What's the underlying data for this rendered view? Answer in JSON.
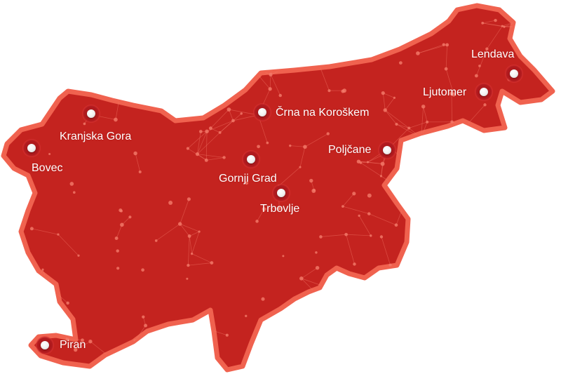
{
  "map": {
    "country": "Slovenia",
    "colors": {
      "fill": "#c4231f",
      "border": "#f0624f",
      "network": "#f47a6a"
    },
    "towns": [
      {
        "name": "Lendava",
        "icon": "location-marker-icon"
      },
      {
        "name": "Ljutomer",
        "icon": "location-marker-icon"
      },
      {
        "name": "Črna na Koroškem",
        "icon": "location-marker-icon"
      },
      {
        "name": "Poljčane",
        "icon": "location-marker-icon"
      },
      {
        "name": "Kranjska Gora",
        "icon": "location-marker-icon"
      },
      {
        "name": "Bovec",
        "icon": "location-marker-icon"
      },
      {
        "name": "Gornji Grad",
        "icon": "location-marker-icon"
      },
      {
        "name": "Trbovlje",
        "icon": "location-marker-icon"
      },
      {
        "name": "Piran",
        "icon": "location-marker-icon"
      }
    ]
  }
}
